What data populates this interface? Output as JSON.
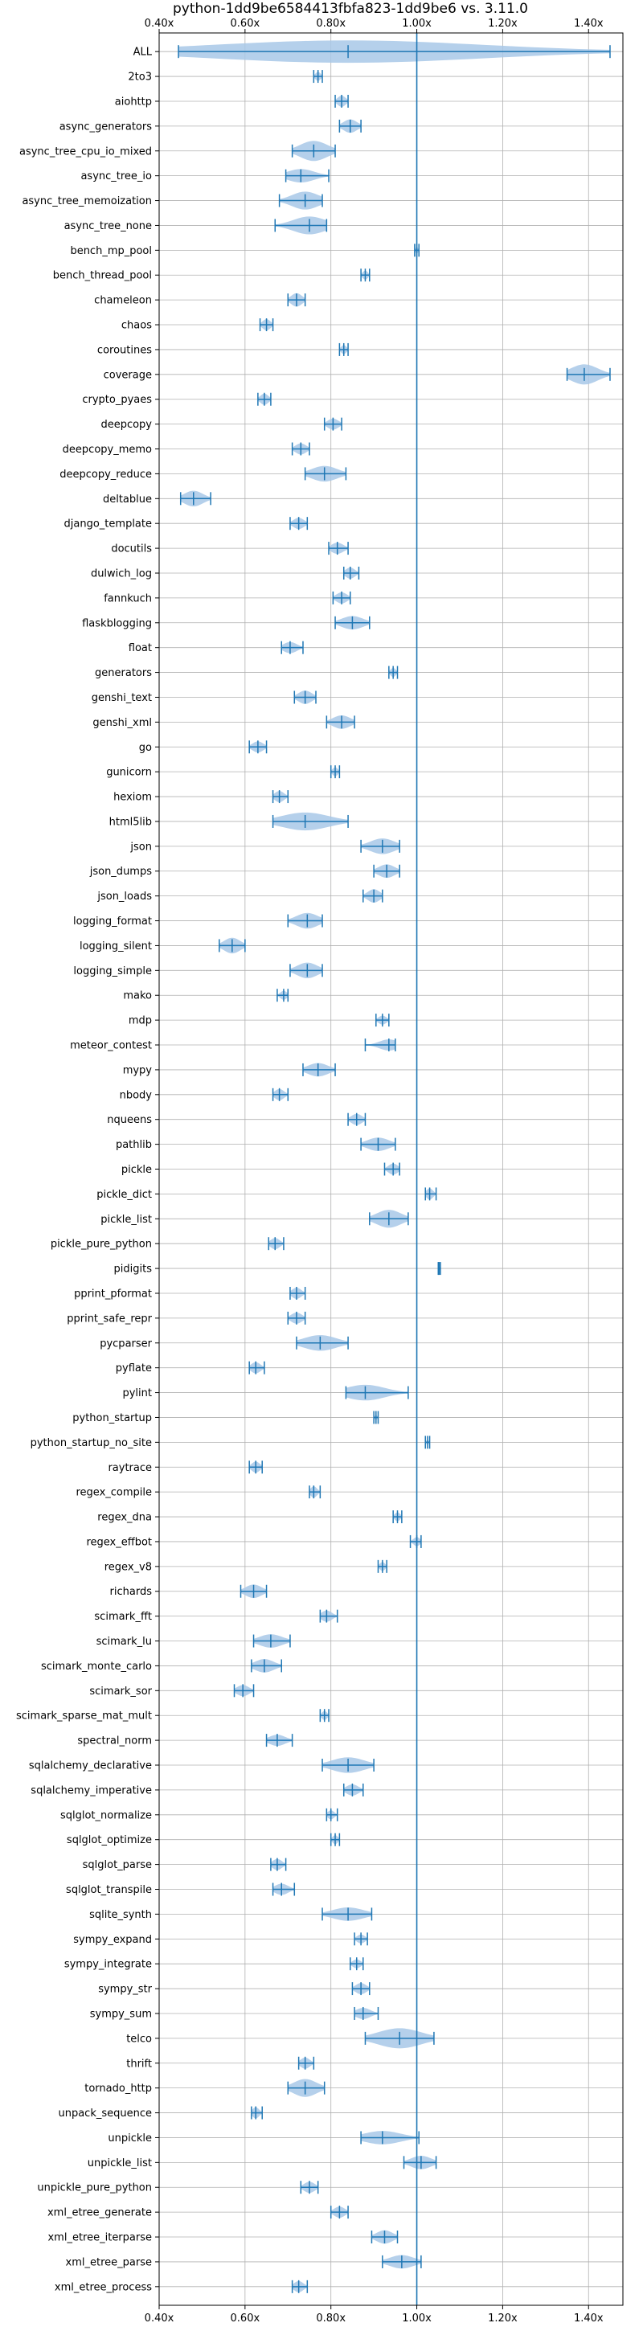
{
  "chart_data": {
    "type": "violin",
    "orientation": "horizontal",
    "title": "python-1dd9be6584413fbfa823-1dd9be6 vs. 3.11.0",
    "xlim": [
      0.4,
      1.48
    ],
    "xticks": [
      0.4,
      0.6,
      0.8,
      1.0,
      1.2,
      1.4
    ],
    "xtick_labels": [
      "0.40x",
      "0.60x",
      "0.80x",
      "1.00x",
      "1.20x",
      "1.40x"
    ],
    "reference_line": 1.0,
    "grid": true,
    "colors": {
      "violin_fill": "#a8c8e8",
      "line": "#1f77b4",
      "grid": "#b0b0b0"
    },
    "benchmarks": [
      {
        "name": "ALL",
        "min": 0.445,
        "median": 0.84,
        "max": 1.45,
        "width": 1.0
      },
      {
        "name": "2to3",
        "min": 0.76,
        "median": 0.77,
        "max": 0.78,
        "width": 0.4
      },
      {
        "name": "aiohttp",
        "min": 0.81,
        "median": 0.825,
        "max": 0.84,
        "width": 0.5
      },
      {
        "name": "async_generators",
        "min": 0.82,
        "median": 0.845,
        "max": 0.87,
        "width": 0.6
      },
      {
        "name": "async_tree_cpu_io_mixed",
        "min": 0.71,
        "median": 0.76,
        "max": 0.81,
        "width": 0.9
      },
      {
        "name": "async_tree_io",
        "min": 0.695,
        "median": 0.73,
        "max": 0.795,
        "width": 0.6
      },
      {
        "name": "async_tree_memoization",
        "min": 0.68,
        "median": 0.74,
        "max": 0.78,
        "width": 0.8
      },
      {
        "name": "async_tree_none",
        "min": 0.67,
        "median": 0.75,
        "max": 0.79,
        "width": 0.8
      },
      {
        "name": "bench_mp_pool",
        "min": 0.995,
        "median": 1.0,
        "max": 1.005,
        "width": 0.3
      },
      {
        "name": "bench_thread_pool",
        "min": 0.87,
        "median": 0.88,
        "max": 0.89,
        "width": 0.4
      },
      {
        "name": "chameleon",
        "min": 0.7,
        "median": 0.72,
        "max": 0.74,
        "width": 0.6
      },
      {
        "name": "chaos",
        "min": 0.635,
        "median": 0.65,
        "max": 0.665,
        "width": 0.5
      },
      {
        "name": "coroutines",
        "min": 0.82,
        "median": 0.83,
        "max": 0.84,
        "width": 0.4
      },
      {
        "name": "coverage",
        "min": 1.35,
        "median": 1.39,
        "max": 1.45,
        "width": 0.9
      },
      {
        "name": "crypto_pyaes",
        "min": 0.63,
        "median": 0.645,
        "max": 0.66,
        "width": 0.5
      },
      {
        "name": "deepcopy",
        "min": 0.785,
        "median": 0.805,
        "max": 0.825,
        "width": 0.5
      },
      {
        "name": "deepcopy_memo",
        "min": 0.71,
        "median": 0.73,
        "max": 0.75,
        "width": 0.5
      },
      {
        "name": "deepcopy_reduce",
        "min": 0.74,
        "median": 0.785,
        "max": 0.835,
        "width": 0.7
      },
      {
        "name": "deltablue",
        "min": 0.45,
        "median": 0.48,
        "max": 0.52,
        "width": 0.7
      },
      {
        "name": "django_template",
        "min": 0.705,
        "median": 0.725,
        "max": 0.745,
        "width": 0.5
      },
      {
        "name": "docutils",
        "min": 0.795,
        "median": 0.815,
        "max": 0.84,
        "width": 0.5
      },
      {
        "name": "dulwich_log",
        "min": 0.83,
        "median": 0.845,
        "max": 0.865,
        "width": 0.5
      },
      {
        "name": "fannkuch",
        "min": 0.805,
        "median": 0.825,
        "max": 0.845,
        "width": 0.5
      },
      {
        "name": "flaskblogging",
        "min": 0.81,
        "median": 0.85,
        "max": 0.89,
        "width": 0.6
      },
      {
        "name": "float",
        "min": 0.685,
        "median": 0.705,
        "max": 0.735,
        "width": 0.5
      },
      {
        "name": "generators",
        "min": 0.935,
        "median": 0.945,
        "max": 0.955,
        "width": 0.4
      },
      {
        "name": "genshi_text",
        "min": 0.715,
        "median": 0.74,
        "max": 0.765,
        "width": 0.6
      },
      {
        "name": "genshi_xml",
        "min": 0.79,
        "median": 0.825,
        "max": 0.855,
        "width": 0.6
      },
      {
        "name": "go",
        "min": 0.61,
        "median": 0.63,
        "max": 0.65,
        "width": 0.5
      },
      {
        "name": "gunicorn",
        "min": 0.8,
        "median": 0.81,
        "max": 0.82,
        "width": 0.4
      },
      {
        "name": "hexiom",
        "min": 0.665,
        "median": 0.68,
        "max": 0.7,
        "width": 0.5
      },
      {
        "name": "html5lib",
        "min": 0.665,
        "median": 0.74,
        "max": 0.84,
        "width": 0.8
      },
      {
        "name": "json",
        "min": 0.87,
        "median": 0.92,
        "max": 0.96,
        "width": 0.7
      },
      {
        "name": "json_dumps",
        "min": 0.9,
        "median": 0.93,
        "max": 0.96,
        "width": 0.6
      },
      {
        "name": "json_loads",
        "min": 0.875,
        "median": 0.9,
        "max": 0.92,
        "width": 0.6
      },
      {
        "name": "logging_format",
        "min": 0.7,
        "median": 0.745,
        "max": 0.78,
        "width": 0.7
      },
      {
        "name": "logging_silent",
        "min": 0.54,
        "median": 0.57,
        "max": 0.6,
        "width": 0.7
      },
      {
        "name": "logging_simple",
        "min": 0.705,
        "median": 0.745,
        "max": 0.78,
        "width": 0.7
      },
      {
        "name": "mako",
        "min": 0.675,
        "median": 0.69,
        "max": 0.7,
        "width": 0.4
      },
      {
        "name": "mdp",
        "min": 0.905,
        "median": 0.92,
        "max": 0.935,
        "width": 0.4
      },
      {
        "name": "meteor_contest",
        "min": 0.88,
        "median": 0.935,
        "max": 0.95,
        "width": 0.5
      },
      {
        "name": "mypy",
        "min": 0.735,
        "median": 0.77,
        "max": 0.81,
        "width": 0.6
      },
      {
        "name": "nbody",
        "min": 0.665,
        "median": 0.68,
        "max": 0.7,
        "width": 0.5
      },
      {
        "name": "nqueens",
        "min": 0.84,
        "median": 0.86,
        "max": 0.88,
        "width": 0.5
      },
      {
        "name": "pathlib",
        "min": 0.87,
        "median": 0.91,
        "max": 0.95,
        "width": 0.6
      },
      {
        "name": "pickle",
        "min": 0.925,
        "median": 0.945,
        "max": 0.96,
        "width": 0.5
      },
      {
        "name": "pickle_dict",
        "min": 1.02,
        "median": 1.03,
        "max": 1.045,
        "width": 0.5
      },
      {
        "name": "pickle_list",
        "min": 0.89,
        "median": 0.935,
        "max": 0.98,
        "width": 0.8
      },
      {
        "name": "pickle_pure_python",
        "min": 0.655,
        "median": 0.67,
        "max": 0.69,
        "width": 0.5
      },
      {
        "name": "pidigits",
        "min": 1.05,
        "median": 1.052,
        "max": 1.055,
        "width": 0.2
      },
      {
        "name": "pprint_pformat",
        "min": 0.705,
        "median": 0.72,
        "max": 0.74,
        "width": 0.5
      },
      {
        "name": "pprint_safe_repr",
        "min": 0.7,
        "median": 0.72,
        "max": 0.74,
        "width": 0.5
      },
      {
        "name": "pycparser",
        "min": 0.72,
        "median": 0.775,
        "max": 0.84,
        "width": 0.7
      },
      {
        "name": "pyflate",
        "min": 0.61,
        "median": 0.625,
        "max": 0.645,
        "width": 0.5
      },
      {
        "name": "pylint",
        "min": 0.835,
        "median": 0.88,
        "max": 0.98,
        "width": 0.7
      },
      {
        "name": "python_startup",
        "min": 0.9,
        "median": 0.905,
        "max": 0.91,
        "width": 0.2
      },
      {
        "name": "python_startup_no_site",
        "min": 1.02,
        "median": 1.025,
        "max": 1.03,
        "width": 0.2
      },
      {
        "name": "raytrace",
        "min": 0.61,
        "median": 0.625,
        "max": 0.64,
        "width": 0.5
      },
      {
        "name": "regex_compile",
        "min": 0.75,
        "median": 0.76,
        "max": 0.775,
        "width": 0.5
      },
      {
        "name": "regex_dna",
        "min": 0.945,
        "median": 0.955,
        "max": 0.965,
        "width": 0.4
      },
      {
        "name": "regex_effbot",
        "min": 0.985,
        "median": 1.0,
        "max": 1.01,
        "width": 0.4
      },
      {
        "name": "regex_v8",
        "min": 0.91,
        "median": 0.92,
        "max": 0.93,
        "width": 0.4
      },
      {
        "name": "richards",
        "min": 0.59,
        "median": 0.62,
        "max": 0.65,
        "width": 0.6
      },
      {
        "name": "scimark_fft",
        "min": 0.775,
        "median": 0.79,
        "max": 0.815,
        "width": 0.5
      },
      {
        "name": "scimark_lu",
        "min": 0.62,
        "median": 0.66,
        "max": 0.705,
        "width": 0.6
      },
      {
        "name": "scimark_monte_carlo",
        "min": 0.615,
        "median": 0.645,
        "max": 0.685,
        "width": 0.6
      },
      {
        "name": "scimark_sor",
        "min": 0.575,
        "median": 0.595,
        "max": 0.62,
        "width": 0.5
      },
      {
        "name": "scimark_sparse_mat_mult",
        "min": 0.775,
        "median": 0.785,
        "max": 0.795,
        "width": 0.4
      },
      {
        "name": "spectral_norm",
        "min": 0.65,
        "median": 0.675,
        "max": 0.71,
        "width": 0.5
      },
      {
        "name": "sqlalchemy_declarative",
        "min": 0.78,
        "median": 0.84,
        "max": 0.9,
        "width": 0.7
      },
      {
        "name": "sqlalchemy_imperative",
        "min": 0.83,
        "median": 0.85,
        "max": 0.875,
        "width": 0.5
      },
      {
        "name": "sqlglot_normalize",
        "min": 0.79,
        "median": 0.8,
        "max": 0.815,
        "width": 0.4
      },
      {
        "name": "sqlglot_optimize",
        "min": 0.8,
        "median": 0.81,
        "max": 0.82,
        "width": 0.4
      },
      {
        "name": "sqlglot_parse",
        "min": 0.66,
        "median": 0.675,
        "max": 0.695,
        "width": 0.5
      },
      {
        "name": "sqlglot_transpile",
        "min": 0.665,
        "median": 0.685,
        "max": 0.715,
        "width": 0.5
      },
      {
        "name": "sqlite_synth",
        "min": 0.78,
        "median": 0.84,
        "max": 0.895,
        "width": 0.6
      },
      {
        "name": "sympy_expand",
        "min": 0.855,
        "median": 0.87,
        "max": 0.885,
        "width": 0.4
      },
      {
        "name": "sympy_integrate",
        "min": 0.845,
        "median": 0.86,
        "max": 0.875,
        "width": 0.4
      },
      {
        "name": "sympy_str",
        "min": 0.85,
        "median": 0.87,
        "max": 0.89,
        "width": 0.5
      },
      {
        "name": "sympy_sum",
        "min": 0.855,
        "median": 0.875,
        "max": 0.91,
        "width": 0.5
      },
      {
        "name": "telco",
        "min": 0.88,
        "median": 0.96,
        "max": 1.04,
        "width": 0.9
      },
      {
        "name": "thrift",
        "min": 0.725,
        "median": 0.74,
        "max": 0.76,
        "width": 0.5
      },
      {
        "name": "tornado_http",
        "min": 0.7,
        "median": 0.74,
        "max": 0.785,
        "width": 0.8
      },
      {
        "name": "unpack_sequence",
        "min": 0.615,
        "median": 0.625,
        "max": 0.64,
        "width": 0.5
      },
      {
        "name": "unpickle",
        "min": 0.87,
        "median": 0.92,
        "max": 1.005,
        "width": 0.6
      },
      {
        "name": "unpickle_list",
        "min": 0.97,
        "median": 1.01,
        "max": 1.045,
        "width": 0.6
      },
      {
        "name": "unpickle_pure_python",
        "min": 0.73,
        "median": 0.75,
        "max": 0.77,
        "width": 0.5
      },
      {
        "name": "xml_etree_generate",
        "min": 0.8,
        "median": 0.82,
        "max": 0.84,
        "width": 0.5
      },
      {
        "name": "xml_etree_iterparse",
        "min": 0.895,
        "median": 0.925,
        "max": 0.955,
        "width": 0.6
      },
      {
        "name": "xml_etree_parse",
        "min": 0.92,
        "median": 0.965,
        "max": 1.01,
        "width": 0.6
      },
      {
        "name": "xml_etree_process",
        "min": 0.71,
        "median": 0.725,
        "max": 0.745,
        "width": 0.5
      }
    ]
  }
}
